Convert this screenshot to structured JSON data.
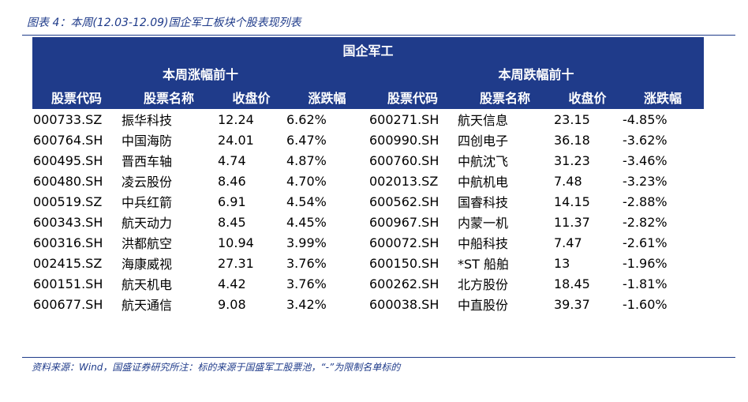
{
  "caption": "图表 4：本周(12.03-12.09)国企军工板块个股表现列表",
  "table": {
    "title": "国企军工",
    "left_group": "本周涨幅前十",
    "right_group": "本周跌幅前十",
    "columns": [
      "股票代码",
      "股票名称",
      "收盘价",
      "涨跌幅",
      "股票代码",
      "股票名称",
      "收盘价",
      "涨跌幅"
    ],
    "rows": [
      [
        "000733.SZ",
        "振华科技",
        "12.24",
        "6.62%",
        "600271.SH",
        "航天信息",
        "23.15",
        "-4.85%"
      ],
      [
        "600764.SH",
        "中国海防",
        "24.01",
        "6.47%",
        "600990.SH",
        "四创电子",
        "36.18",
        "-3.62%"
      ],
      [
        "600495.SH",
        "晋西车轴",
        "4.74",
        "4.87%",
        "600760.SH",
        "中航沈飞",
        "31.23",
        "-3.46%"
      ],
      [
        "600480.SH",
        "凌云股份",
        "8.46",
        "4.70%",
        "002013.SZ",
        "中航机电",
        "7.48",
        "-3.23%"
      ],
      [
        "000519.SZ",
        "中兵红箭",
        "6.91",
        "4.54%",
        "600562.SH",
        "国睿科技",
        "14.15",
        "-2.88%"
      ],
      [
        "600343.SH",
        "航天动力",
        "8.45",
        "4.45%",
        "600967.SH",
        "内蒙一机",
        "11.37",
        "-2.82%"
      ],
      [
        "600316.SH",
        "洪都航空",
        "10.94",
        "3.99%",
        "600072.SH",
        "中船科技",
        "7.47",
        "-2.61%"
      ],
      [
        "002415.SZ",
        "海康威视",
        "27.31",
        "3.76%",
        "600150.SH",
        "*ST 船舶",
        "13",
        "-1.96%"
      ],
      [
        "600151.SH",
        "航天机电",
        "4.42",
        "3.76%",
        "600262.SH",
        "北方股份",
        "18.45",
        "-1.81%"
      ],
      [
        "600677.SH",
        "航天通信",
        "9.08",
        "3.42%",
        "600038.SH",
        "中直股份",
        "39.37",
        "-1.60%"
      ]
    ]
  },
  "source": "资料来源：Wind，国盛证券研究所注：标的来源于国盛军工股票池，“-”为限制名单标的",
  "colors": {
    "header_bg": "#1f3b8a",
    "header_text": "#ffffff",
    "caption_text": "#1f3b8a",
    "body_text": "#111111"
  }
}
